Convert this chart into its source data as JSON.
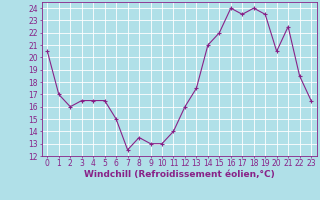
{
  "x": [
    0,
    1,
    2,
    3,
    4,
    5,
    6,
    7,
    8,
    9,
    10,
    11,
    12,
    13,
    14,
    15,
    16,
    17,
    18,
    19,
    20,
    21,
    22,
    23
  ],
  "y": [
    20.5,
    17.0,
    16.0,
    16.5,
    16.5,
    16.5,
    15.0,
    12.5,
    13.5,
    13.0,
    13.0,
    14.0,
    16.0,
    17.5,
    21.0,
    22.0,
    24.0,
    23.5,
    24.0,
    23.5,
    20.5,
    22.5,
    18.5,
    16.5
  ],
  "line_color": "#882288",
  "marker": "+",
  "markersize": 3,
  "linewidth": 0.8,
  "bg_color": "#b0e0e8",
  "grid_color": "#ffffff",
  "xlabel": "Windchill (Refroidissement éolien,°C)",
  "ylabel": "",
  "ylim": [
    12,
    24.5
  ],
  "xlim": [
    -0.5,
    23.5
  ],
  "yticks": [
    12,
    13,
    14,
    15,
    16,
    17,
    18,
    19,
    20,
    21,
    22,
    23,
    24
  ],
  "xticks": [
    0,
    1,
    2,
    3,
    4,
    5,
    6,
    7,
    8,
    9,
    10,
    11,
    12,
    13,
    14,
    15,
    16,
    17,
    18,
    19,
    20,
    21,
    22,
    23
  ],
  "tick_color": "#882288",
  "label_color": "#882288",
  "font_size": 5.5,
  "xlabel_fontsize": 6.5
}
